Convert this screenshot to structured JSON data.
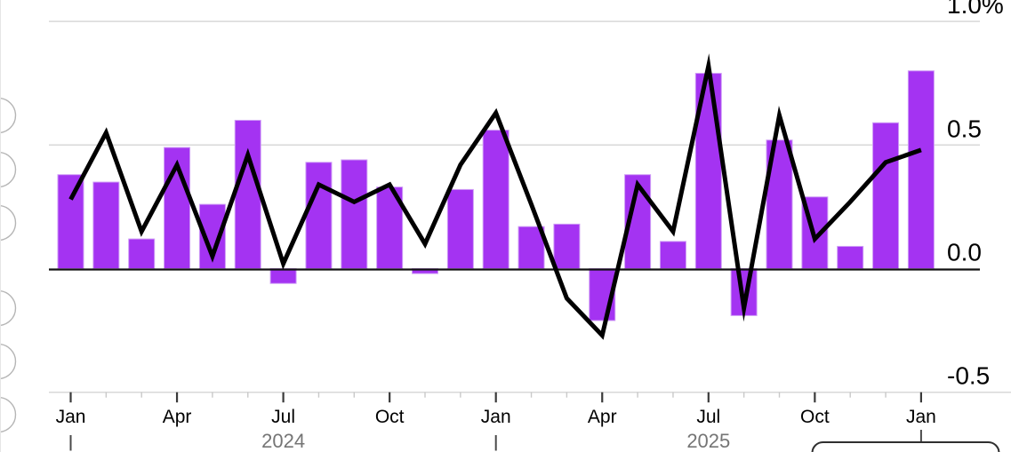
{
  "chart_data": {
    "type": "bar",
    "subtype": "bar-plus-line-combo",
    "title": "",
    "xlabel": "",
    "ylabel": "",
    "unit": "%",
    "x": [
      "Jan 2024",
      "Feb 2024",
      "Mar 2024",
      "Apr 2024",
      "May 2024",
      "Jun 2024",
      "Jul 2024",
      "Aug 2024",
      "Sep 2024",
      "Oct 2024",
      "Nov 2024",
      "Dec 2024",
      "Jan 2025",
      "Feb 2025",
      "Mar 2025",
      "Apr 2025",
      "May 2025",
      "Jun 2025",
      "Jul 2025",
      "Aug 2025",
      "Sep 2025",
      "Oct 2025",
      "Nov 2025",
      "Dec 2025",
      "Jan 2026"
    ],
    "series": [
      {
        "name": "monthly-change-bars",
        "type": "bar",
        "color": "#a433f2",
        "values": [
          0.38,
          0.35,
          0.12,
          0.49,
          0.26,
          0.6,
          -0.06,
          0.43,
          0.44,
          0.33,
          -0.02,
          0.32,
          0.56,
          0.17,
          0.18,
          -0.21,
          0.38,
          0.11,
          0.79,
          -0.19,
          0.52,
          0.29,
          0.09,
          0.59,
          0.8
        ]
      },
      {
        "name": "monthly-change-line",
        "type": "line",
        "color": "#000000",
        "values": [
          0.28,
          0.55,
          0.15,
          0.42,
          0.05,
          0.46,
          0.02,
          0.34,
          0.27,
          0.34,
          0.1,
          0.42,
          0.63,
          0.26,
          -0.12,
          -0.27,
          0.34,
          0.15,
          0.82,
          -0.16,
          0.62,
          0.12,
          0.27,
          0.43,
          0.48
        ]
      }
    ],
    "ylim": [
      -0.5,
      1.0
    ],
    "ytick_values": [
      1.0,
      0.5,
      0.0,
      -0.5
    ],
    "ytick_labels": [
      "1.0%",
      "0.5",
      "0.0",
      "-0.5"
    ],
    "xtick_indices": [
      0,
      3,
      6,
      9,
      12,
      15,
      18,
      21,
      24
    ],
    "xtick_labels": [
      "Jan",
      "Apr",
      "Jul",
      "Oct",
      "Jan",
      "Apr",
      "Jul",
      "Oct",
      "Jan"
    ],
    "year_divider_indices": [
      0,
      12,
      24
    ],
    "year_labels": [
      "2024",
      "2025"
    ],
    "grid": "horizontal",
    "legend_position": "none-visible"
  },
  "colors": {
    "background": "#ffffff",
    "bar": "#a433f2",
    "bar_edge": "#cf9df6",
    "line": "#000000",
    "zero_line": "#111111",
    "grid": "#d8d8d8",
    "tick_minor": "#c9c9c9",
    "tick_major": "#3a3a3a",
    "month_text": "#000000",
    "year_text": "#757575",
    "ylabel_text": "#000000",
    "circle_stroke": "#b5b5b5",
    "box_stroke": "#2f2f2f"
  },
  "left_rail": {
    "description": "column of circular buttons clipped at left edge, no glyphs visible",
    "circle_count": 6
  },
  "footer_widget": {
    "description": "rounded box clipped at bottom edge below last Jan tick",
    "text": ""
  }
}
